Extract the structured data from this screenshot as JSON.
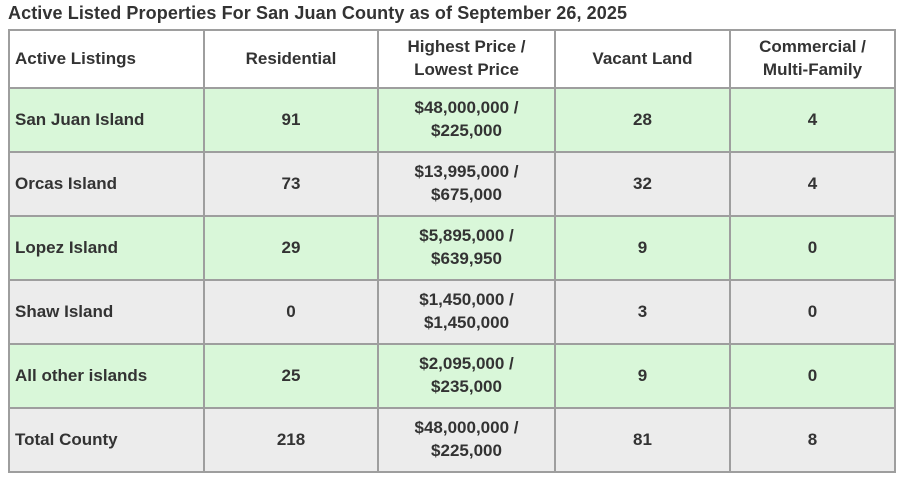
{
  "title": "Active Listed Properties For San Juan County as of September 26, 2025",
  "listing_table": {
    "headers": [
      "Active Listings",
      "Residential",
      "Highest Price /\nLowest Price",
      "Vacant Land",
      "Commercial /\nMulti-Family"
    ],
    "rows": [
      {
        "label": "San Juan Island",
        "residential": "91",
        "price_range": "$48,000,000 /\n$225,000",
        "vacant_land": "28",
        "commercial": "4"
      },
      {
        "label": "Orcas Island",
        "residential": "73",
        "price_range": "$13,995,000 /\n$675,000",
        "vacant_land": "32",
        "commercial": "4"
      },
      {
        "label": "Lopez Island",
        "residential": "29",
        "price_range": "$5,895,000 /\n$639,950",
        "vacant_land": "9",
        "commercial": "0"
      },
      {
        "label": "Shaw Island",
        "residential": "0",
        "price_range": "$1,450,000 /\n$1,450,000",
        "vacant_land": "3",
        "commercial": "0"
      },
      {
        "label": "All other islands",
        "residential": "25",
        "price_range": "$2,095,000 /\n$235,000",
        "vacant_land": "9",
        "commercial": "0"
      },
      {
        "label": "Total County",
        "residential": "218",
        "price_range": "$48,000,000 /\n$225,000",
        "vacant_land": "81",
        "commercial": "8"
      }
    ]
  },
  "colors": {
    "row_highlight_green": "#d9f7d9",
    "row_alt_gray": "#ececec",
    "border_gray": "#9e9e9e",
    "text_dark": "#333333"
  },
  "chart_data": {
    "type": "table",
    "title": "Active Listed Properties For San Juan County as of September 26, 2025",
    "columns": [
      "Active Listings",
      "Residential",
      "Highest Price / Lowest Price",
      "Vacant Land",
      "Commercial / Multi-Family"
    ],
    "rows": [
      [
        "San Juan Island",
        91,
        "$48,000,000 / $225,000",
        28,
        4
      ],
      [
        "Orcas Island",
        73,
        "$13,995,000 / $675,000",
        32,
        4
      ],
      [
        "Lopez Island",
        29,
        "$5,895,000 / $639,950",
        9,
        0
      ],
      [
        "Shaw Island",
        0,
        "$1,450,000 / $1,450,000",
        3,
        0
      ],
      [
        "All other islands",
        25,
        "$2,095,000 / $235,000",
        9,
        0
      ],
      [
        "Total County",
        218,
        "$48,000,000 / $225,000",
        81,
        8
      ]
    ]
  }
}
